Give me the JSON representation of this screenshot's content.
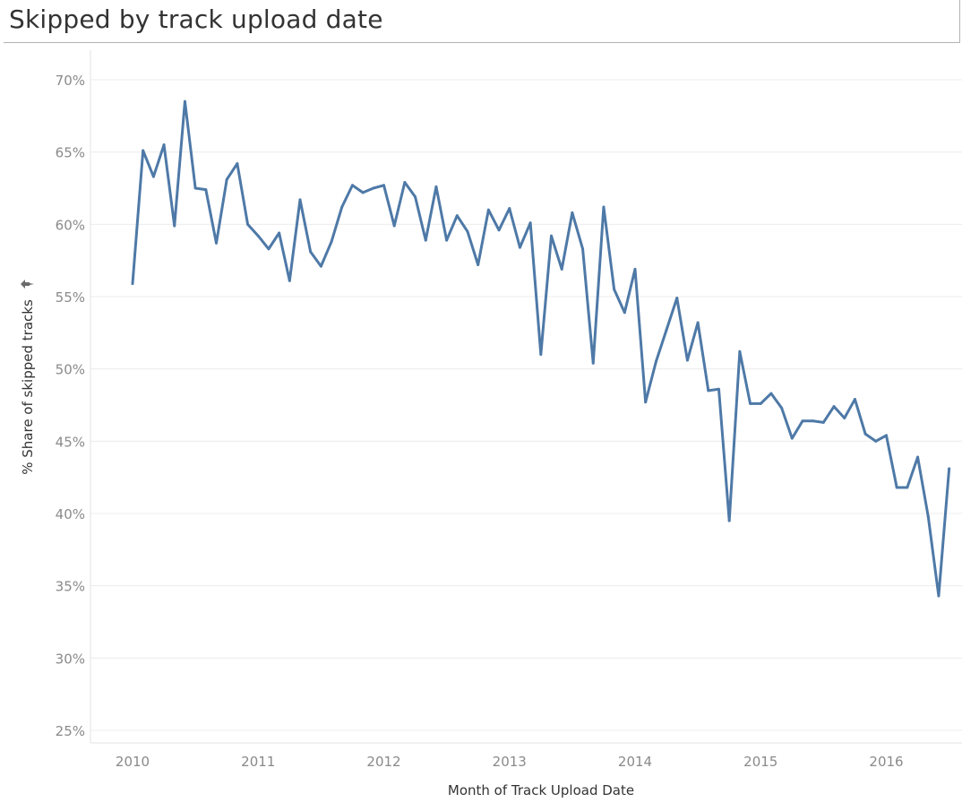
{
  "chart_data": {
    "type": "line",
    "title": "Skipped by track upload date",
    "xlabel": "Month of Track Upload Date",
    "ylabel": "% Share of skipped tracks",
    "ylabel_icon": "pin-icon",
    "ylim": [
      25,
      70
    ],
    "xlim": [
      "2009-11",
      "2016-07"
    ],
    "y_ticks": [
      "70%",
      "65%",
      "60%",
      "55%",
      "50%",
      "45%",
      "40%",
      "35%",
      "30%",
      "25%"
    ],
    "y_tick_values": [
      70,
      65,
      60,
      55,
      50,
      45,
      40,
      35,
      30,
      25
    ],
    "x_ticks": [
      "2010",
      "2011",
      "2012",
      "2013",
      "2014",
      "2015",
      "2016"
    ],
    "x_tick_values": [
      "2010-01",
      "2011-01",
      "2012-01",
      "2013-01",
      "2014-01",
      "2015-01",
      "2016-01"
    ],
    "grid": true,
    "line_color": "#4e79a7",
    "series": [
      {
        "x": [
          "2010-01",
          "2010-02",
          "2010-03",
          "2010-04",
          "2010-05",
          "2010-06",
          "2010-07",
          "2010-08",
          "2010-09",
          "2010-10",
          "2010-11",
          "2010-12",
          "2011-01",
          "2011-02",
          "2011-03",
          "2011-04",
          "2011-05",
          "2011-06",
          "2011-07",
          "2011-08",
          "2011-09",
          "2011-10",
          "2011-11",
          "2011-12",
          "2012-01",
          "2012-02",
          "2012-03",
          "2012-04",
          "2012-05",
          "2012-06",
          "2012-07",
          "2012-08",
          "2012-09",
          "2012-10",
          "2012-11",
          "2012-12",
          "2013-01",
          "2013-02",
          "2013-03",
          "2013-04",
          "2013-05",
          "2013-06",
          "2013-07",
          "2013-08",
          "2013-09",
          "2013-10",
          "2013-11",
          "2013-12",
          "2014-01",
          "2014-02",
          "2014-03",
          "2014-04",
          "2014-05",
          "2014-06",
          "2014-07",
          "2014-08",
          "2014-09",
          "2014-10",
          "2014-11",
          "2014-12",
          "2015-01",
          "2015-02",
          "2015-03",
          "2015-04",
          "2015-05",
          "2015-06",
          "2015-07",
          "2015-08",
          "2015-09",
          "2015-10",
          "2015-11",
          "2015-12",
          "2016-01",
          "2016-02",
          "2016-03",
          "2016-04",
          "2016-05",
          "2016-06",
          "2016-07"
        ],
        "values": [
          55.9,
          65.1,
          63.3,
          65.5,
          59.9,
          68.5,
          62.5,
          62.4,
          58.7,
          63.1,
          64.2,
          60.0,
          59.2,
          58.3,
          59.4,
          56.1,
          61.7,
          58.1,
          57.1,
          58.8,
          61.2,
          62.7,
          62.2,
          62.5,
          62.7,
          59.9,
          62.9,
          61.9,
          58.9,
          62.6,
          58.9,
          60.6,
          59.5,
          57.2,
          61.0,
          59.6,
          61.1,
          58.4,
          60.1,
          51.0,
          59.2,
          56.9,
          60.8,
          58.3,
          50.4,
          61.2,
          55.5,
          53.9,
          56.9,
          47.7,
          50.5,
          52.7,
          54.9,
          50.6,
          53.2,
          48.5,
          48.6,
          39.5,
          51.2,
          47.6,
          47.6,
          48.3,
          47.3,
          45.2,
          46.4,
          46.4,
          46.3,
          47.4,
          46.6,
          47.9,
          45.5,
          45.0,
          45.4,
          41.8,
          41.8,
          43.9,
          39.8,
          34.3,
          43.1
        ]
      }
    ]
  }
}
